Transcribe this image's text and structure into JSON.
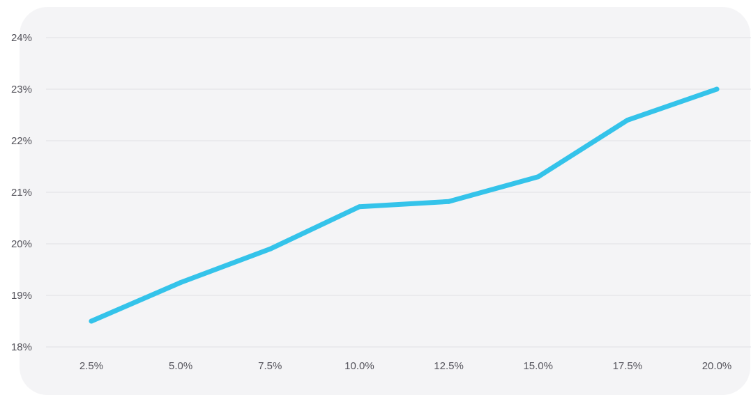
{
  "chart_data": {
    "type": "line",
    "title": "",
    "xlabel": "",
    "ylabel": "",
    "x": [
      "2.5%",
      "5.0%",
      "7.5%",
      "10.0%",
      "12.5%",
      "15.0%",
      "17.5%",
      "20.0%"
    ],
    "series": [
      {
        "values": [
          18.5,
          19.25,
          19.9,
          20.72,
          20.82,
          21.3,
          22.4,
          23.0
        ],
        "color": "#34c3ea"
      }
    ],
    "y_ticks": [
      "18%",
      "19%",
      "20%",
      "21%",
      "22%",
      "23%",
      "24%"
    ],
    "ylim": [
      18,
      24
    ],
    "grid": true,
    "legend": "none",
    "background_color": "#f4f4f6"
  }
}
